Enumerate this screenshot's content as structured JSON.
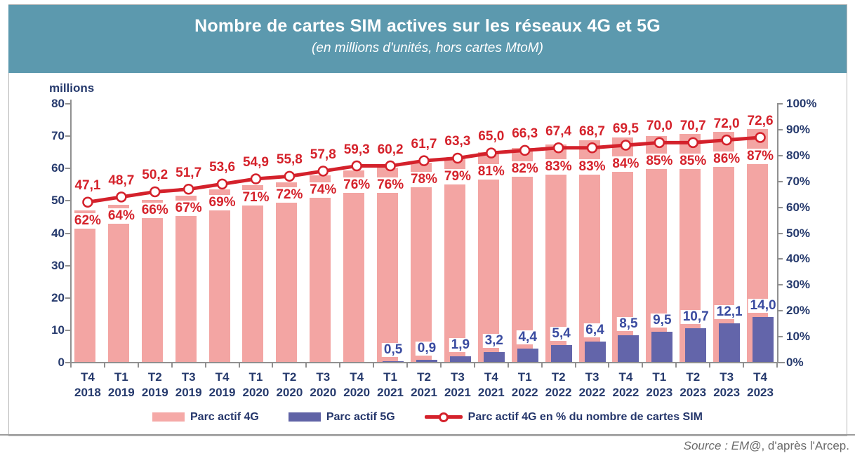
{
  "header": {
    "title": "Nombre de cartes SIM actives sur les réseaux 4G et 5G",
    "subtitle": "(en millions d'unités, hors cartes MtoM)"
  },
  "legend": {
    "items": [
      {
        "label": "Parc actif 4G",
        "swatch": "pink-rect"
      },
      {
        "label": "Parc actif 5G",
        "swatch": "purple-rect"
      },
      {
        "label": "Parc actif 4G en % du nombre de cartes SIM",
        "swatch": "red-line-circle"
      }
    ]
  },
  "source": {
    "italic": "Source : EM@",
    "rest": ", d'après l'Arcep."
  },
  "colors": {
    "header_bg": "#5c99ae",
    "bar_4g": "#f3a5a3",
    "bar_5g": "#6365aa",
    "pct_line": "#d4212b",
    "label_4g": "#d5222b",
    "label_5g": "#3a4ba0",
    "axis_text": "#263a6d",
    "axis_gray": "#909090",
    "source_text": "#6b6b6b"
  },
  "chart_data": {
    "type": "combo-bar-line",
    "categories": [
      {
        "quarter": "T4",
        "year": "2018"
      },
      {
        "quarter": "T1",
        "year": "2019"
      },
      {
        "quarter": "T2",
        "year": "2019"
      },
      {
        "quarter": "T3",
        "year": "2019"
      },
      {
        "quarter": "T4",
        "year": "2019"
      },
      {
        "quarter": "T1",
        "year": "2020"
      },
      {
        "quarter": "T2",
        "year": "2020"
      },
      {
        "quarter": "T3",
        "year": "2020"
      },
      {
        "quarter": "T4",
        "year": "2020"
      },
      {
        "quarter": "T1",
        "year": "2021"
      },
      {
        "quarter": "T2",
        "year": "2021"
      },
      {
        "quarter": "T3",
        "year": "2021"
      },
      {
        "quarter": "T4",
        "year": "2021"
      },
      {
        "quarter": "T1",
        "year": "2022"
      },
      {
        "quarter": "T2",
        "year": "2022"
      },
      {
        "quarter": "T3",
        "year": "2022"
      },
      {
        "quarter": "T4",
        "year": "2022"
      },
      {
        "quarter": "T1",
        "year": "2023"
      },
      {
        "quarter": "T2",
        "year": "2023"
      },
      {
        "quarter": "T3",
        "year": "2023"
      },
      {
        "quarter": "T4",
        "year": "2023"
      }
    ],
    "left_axis": {
      "title": "millions",
      "min": 0,
      "max": 80,
      "step": 10
    },
    "right_axis": {
      "min": 0,
      "max": 100,
      "step": 10,
      "suffix": "%"
    },
    "series": [
      {
        "name": "Parc actif 4G",
        "type": "bar",
        "axis": "left",
        "color": "#f3a5a3",
        "values": [
          47.1,
          48.7,
          50.2,
          51.7,
          53.6,
          54.9,
          55.8,
          57.8,
          59.3,
          60.2,
          61.7,
          63.3,
          65.0,
          66.3,
          67.4,
          68.7,
          69.5,
          70.0,
          70.7,
          72.0,
          72.6
        ],
        "labels": [
          "47,1",
          "48,7",
          "50,2",
          "51,7",
          "53,6",
          "54,9",
          "55,8",
          "57,8",
          "59,3",
          "60,2",
          "61,7",
          "63,3",
          "65,0",
          "66,3",
          "67,4",
          "68,7",
          "69,5",
          "70,0",
          "70,7",
          "72,0",
          "72,6"
        ]
      },
      {
        "name": "Parc actif 5G",
        "type": "bar",
        "axis": "left",
        "color": "#6365aa",
        "values": [
          null,
          null,
          null,
          null,
          null,
          null,
          null,
          null,
          null,
          0.5,
          0.9,
          1.9,
          3.2,
          4.4,
          5.4,
          6.4,
          8.5,
          9.5,
          10.7,
          12.1,
          14.0
        ],
        "labels": [
          null,
          null,
          null,
          null,
          null,
          null,
          null,
          null,
          null,
          "0,5",
          "0,9",
          "1,9",
          "3,2",
          "4,4",
          "5,4",
          "6,4",
          "8,5",
          "9,5",
          "10,7",
          "12,1",
          "14,0"
        ]
      },
      {
        "name": "Parc actif 4G en % du nombre de cartes SIM",
        "type": "line",
        "axis": "right",
        "color": "#d4212b",
        "values": [
          62,
          64,
          66,
          67,
          69,
          71,
          72,
          74,
          76,
          76,
          78,
          79,
          81,
          82,
          83,
          83,
          84,
          85,
          85,
          86,
          87
        ],
        "labels": [
          "62%",
          "64%",
          "66%",
          "67%",
          "69%",
          "71%",
          "72%",
          "74%",
          "76%",
          "76%",
          "78%",
          "79%",
          "81%",
          "82%",
          "83%",
          "83%",
          "84%",
          "85%",
          "85%",
          "86%",
          "87%"
        ]
      }
    ]
  }
}
